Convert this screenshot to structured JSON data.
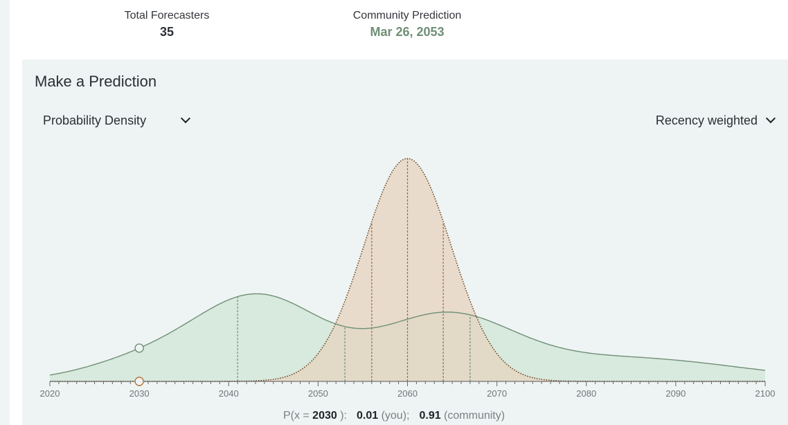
{
  "stats": {
    "forecasters_label": "Total Forecasters",
    "forecasters_value": "35",
    "community_label": "Community Prediction",
    "community_value": "Mar 26, 2053"
  },
  "prediction": {
    "title": "Make a Prediction",
    "mode_select": "Probability Density",
    "weight_select": "Recency weighted"
  },
  "chart_data": {
    "type": "area",
    "x_ticks": [
      "2020",
      "2030",
      "2040",
      "2050",
      "2060",
      "2070",
      "2080",
      "2090",
      "2100"
    ],
    "xlim": [
      2020,
      2100
    ],
    "series": [
      {
        "color": "#6f8f76",
        "fill": "#d6e8dc",
        "quartile_lines": [
          2041,
          2053,
          2067
        ]
      },
      {
        "color": "#8a5a2b",
        "fill": "#e5d3bf",
        "quartile_lines": [
          2056,
          2060,
          2064
        ]
      }
    ],
    "cursor_x": 2030
  },
  "readout": {
    "prefix": "P(x = ",
    "x_value": "2030",
    "suffix": " ):",
    "you_value": "0.01",
    "you_label": " (you);",
    "community_value": "0.91",
    "community_label": " (community)"
  },
  "colors": {
    "community": "#6f8f76",
    "you": "#b4763a",
    "panel_bg": "#eef4f3"
  }
}
